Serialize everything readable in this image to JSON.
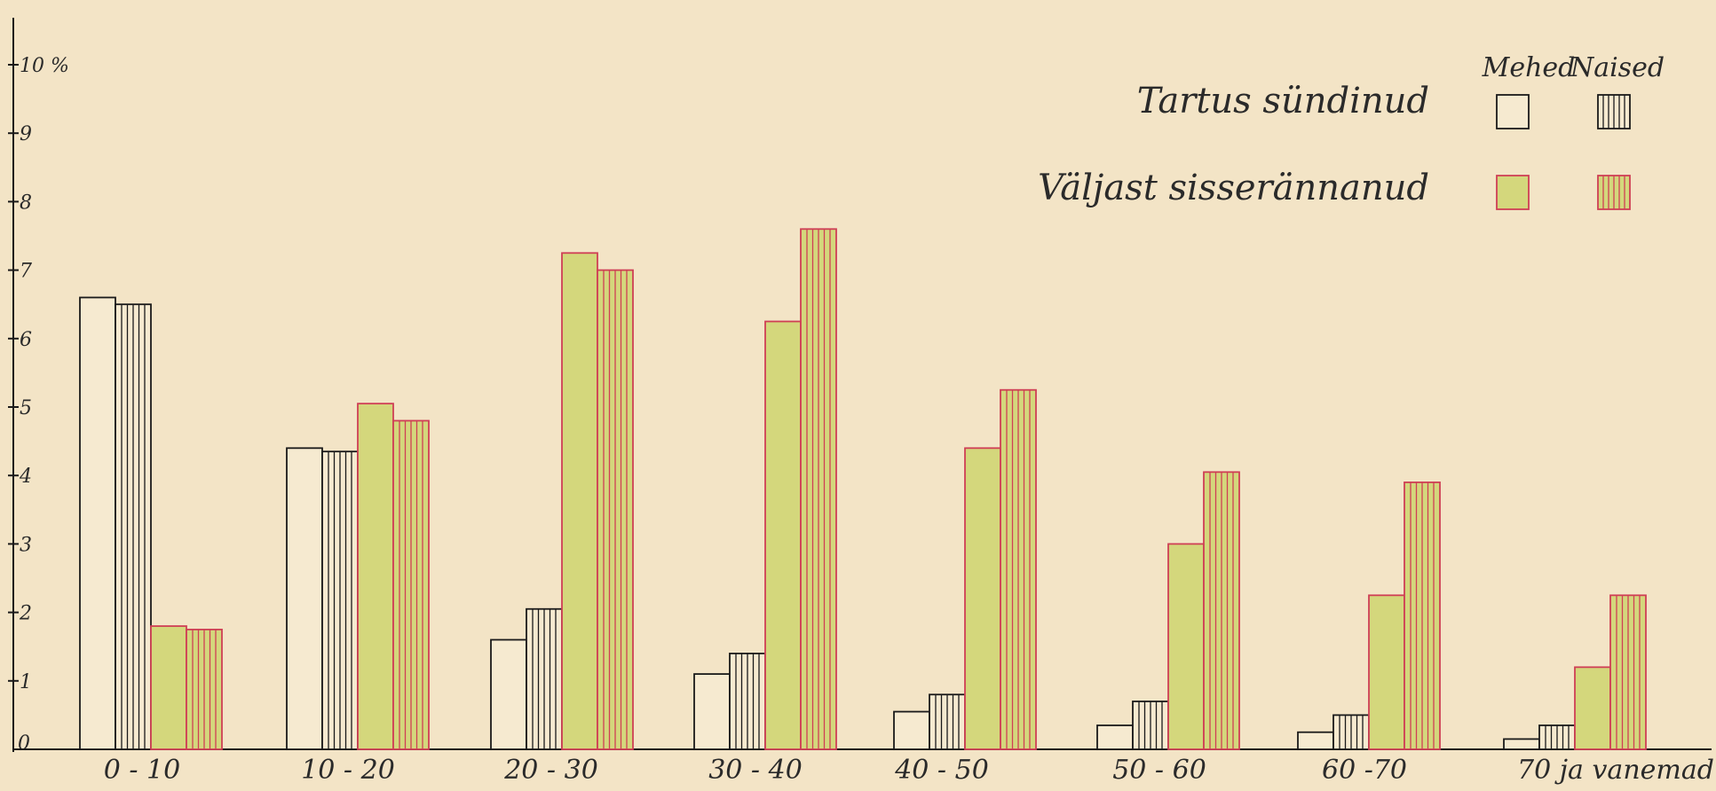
{
  "chart_data": {
    "type": "bar",
    "title": "",
    "xlabel": "",
    "ylabel": "",
    "ylim": [
      0,
      10.5
    ],
    "yticks": [
      1,
      2,
      3,
      4,
      5,
      6,
      7,
      8,
      9,
      10
    ],
    "ytick_labels": [
      "1",
      "2",
      "3",
      "4",
      "5",
      "6",
      "7",
      "8",
      "9",
      "10 %"
    ],
    "zero_label": "0",
    "grid": false,
    "legend_position": "top-right",
    "legend": {
      "columns": [
        "Mehed",
        "Naised"
      ],
      "rows": [
        "Tartus sündinud",
        "Väljast sisserännanud"
      ]
    },
    "categories": [
      "0 - 10",
      "10 - 20",
      "20 - 30",
      "30 - 40",
      "40 - 50",
      "50 - 60",
      "60 -70",
      "70 ja vanemad"
    ],
    "series": [
      {
        "name": "Tartus sündinud — Mehed",
        "group": "Tartus sündinud",
        "sex": "Mehed",
        "fill": "#f6ead0",
        "stroke": "#1a1a1a",
        "stripes": false,
        "values": [
          6.6,
          4.4,
          1.6,
          1.1,
          0.55,
          0.35,
          0.25,
          0.15
        ]
      },
      {
        "name": "Tartus sündinud — Naised",
        "group": "Tartus sündinud",
        "sex": "Naised",
        "fill": "#f6ead0",
        "stroke": "#1a1a1a",
        "stripes": true,
        "values": [
          6.5,
          4.35,
          2.05,
          1.4,
          0.8,
          0.7,
          0.5,
          0.35
        ]
      },
      {
        "name": "Väljast sisserännanud — Mehed",
        "group": "Väljast sisserännanud",
        "sex": "Mehed",
        "fill": "#d4d77c",
        "stroke": "#cf3f55",
        "stripes": false,
        "values": [
          1.8,
          5.05,
          7.25,
          6.25,
          4.4,
          3.0,
          2.25,
          1.2
        ]
      },
      {
        "name": "Väljast sisserännanud — Naised",
        "group": "Väljast sisserännanud",
        "sex": "Naised",
        "fill": "#d4d77c",
        "stroke": "#cf3f55",
        "stripes": true,
        "values": [
          1.75,
          4.8,
          7.0,
          7.6,
          5.25,
          4.05,
          3.9,
          2.25
        ]
      }
    ]
  }
}
